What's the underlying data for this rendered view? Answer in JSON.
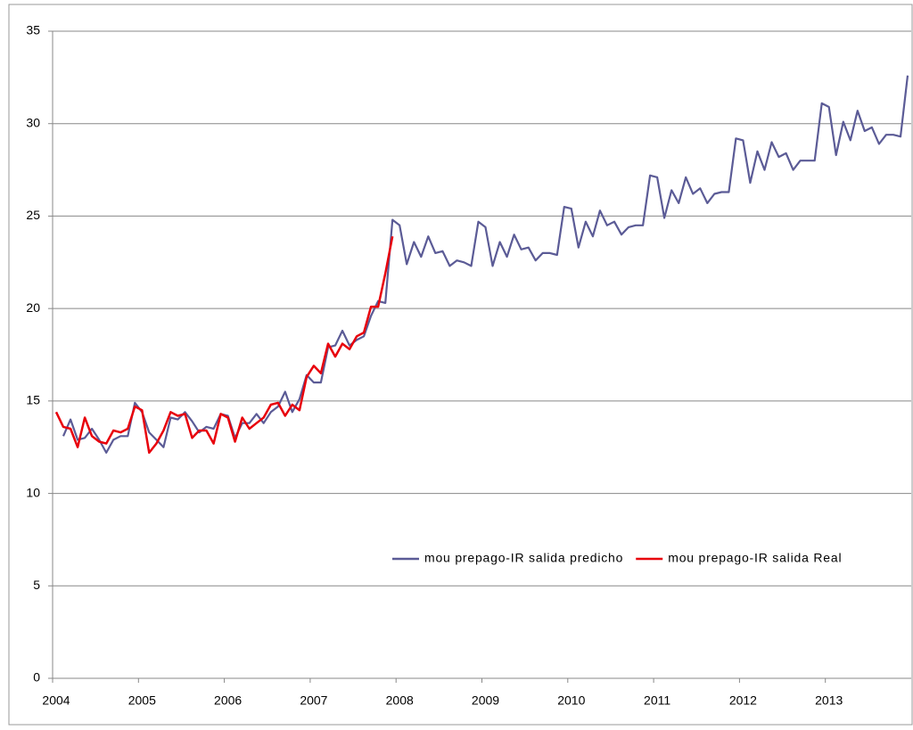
{
  "chart_data": {
    "type": "line",
    "categories": [
      "2004",
      null,
      null,
      null,
      null,
      null,
      null,
      null,
      null,
      null,
      null,
      null,
      "2005",
      null,
      null,
      null,
      null,
      null,
      null,
      null,
      null,
      null,
      null,
      null,
      "2006",
      null,
      null,
      null,
      null,
      null,
      null,
      null,
      null,
      null,
      null,
      null,
      "2007",
      null,
      null,
      null,
      null,
      null,
      null,
      null,
      null,
      null,
      null,
      null,
      "2008",
      null,
      null,
      null,
      null,
      null,
      null,
      null,
      null,
      null,
      null,
      null,
      "2009",
      null,
      null,
      null,
      null,
      null,
      null,
      null,
      null,
      null,
      null,
      null,
      "2010",
      null,
      null,
      null,
      null,
      null,
      null,
      null,
      null,
      null,
      null,
      null,
      "2011",
      null,
      null,
      null,
      null,
      null,
      null,
      null,
      null,
      null,
      null,
      null,
      "2012",
      null,
      null,
      null,
      null,
      null,
      null,
      null,
      null,
      null,
      null,
      null,
      "2013",
      null,
      null,
      null,
      null,
      null,
      null,
      null,
      null,
      null,
      null,
      null
    ],
    "series": [
      {
        "name": "mou prepago-IR salida predicho",
        "color": "#5b5b96",
        "values": [
          null,
          13.1,
          14.0,
          12.9,
          13.0,
          13.5,
          12.9,
          12.2,
          12.9,
          13.1,
          13.1,
          14.9,
          14.4,
          13.3,
          12.9,
          12.5,
          14.1,
          14.0,
          14.4,
          13.9,
          13.3,
          13.6,
          13.5,
          14.3,
          14.2,
          13.0,
          13.8,
          13.8,
          14.3,
          13.8,
          14.4,
          14.7,
          15.5,
          14.4,
          15.1,
          16.4,
          16.0,
          16.0,
          17.9,
          18.0,
          18.8,
          18.0,
          18.3,
          18.5,
          19.6,
          20.4,
          20.3,
          24.8,
          24.5,
          22.4,
          23.6,
          22.8,
          23.9,
          23.0,
          23.1,
          22.3,
          22.6,
          22.5,
          22.3,
          24.7,
          24.4,
          22.3,
          23.6,
          22.8,
          24.0,
          23.2,
          23.3,
          22.6,
          23.0,
          23.0,
          22.9,
          25.5,
          25.4,
          23.3,
          24.7,
          23.9,
          25.3,
          24.5,
          24.7,
          24.0,
          24.4,
          24.5,
          24.5,
          27.2,
          27.1,
          24.9,
          26.4,
          25.7,
          27.1,
          26.2,
          26.5,
          25.7,
          26.2,
          26.3,
          26.3,
          29.2,
          29.1,
          26.8,
          28.5,
          27.5,
          29.0,
          28.2,
          28.4,
          27.5,
          28.0,
          28.0,
          28.0,
          31.1,
          30.9,
          28.3,
          30.1,
          29.1,
          30.7,
          29.6,
          29.8,
          28.9,
          29.4,
          29.4,
          29.3,
          32.6
        ]
      },
      {
        "name": "mou prepago-IR salida Real",
        "color": "#e8000b",
        "values": [
          14.4,
          13.6,
          13.5,
          12.5,
          14.1,
          13.1,
          12.8,
          12.7,
          13.4,
          13.3,
          13.5,
          14.7,
          14.5,
          12.2,
          12.7,
          13.4,
          14.4,
          14.2,
          14.3,
          13.0,
          13.4,
          13.4,
          12.7,
          14.3,
          14.1,
          12.8,
          14.1,
          13.5,
          13.8,
          14.1,
          14.8,
          14.9,
          14.2,
          14.8,
          14.5,
          16.3,
          16.9,
          16.5,
          18.1,
          17.4,
          18.1,
          17.8,
          18.5,
          18.7,
          20.1,
          20.1,
          21.9,
          23.9,
          null,
          null,
          null,
          null,
          null,
          null,
          null,
          null,
          null,
          null,
          null,
          null,
          null,
          null,
          null,
          null,
          null,
          null,
          null,
          null,
          null,
          null,
          null,
          null,
          null,
          null,
          null,
          null,
          null,
          null,
          null,
          null,
          null,
          null,
          null,
          null,
          null,
          null,
          null,
          null,
          null,
          null,
          null,
          null,
          null,
          null,
          null,
          null,
          null,
          null,
          null,
          null,
          null,
          null,
          null,
          null,
          null,
          null,
          null,
          null,
          null,
          null,
          null,
          null,
          null,
          null,
          null,
          null,
          null,
          null,
          null,
          null
        ]
      }
    ],
    "ylim": [
      0,
      35
    ],
    "yticks": [
      0,
      5,
      10,
      15,
      20,
      25,
      30,
      35
    ],
    "grid": true,
    "legend": "lower-right"
  }
}
